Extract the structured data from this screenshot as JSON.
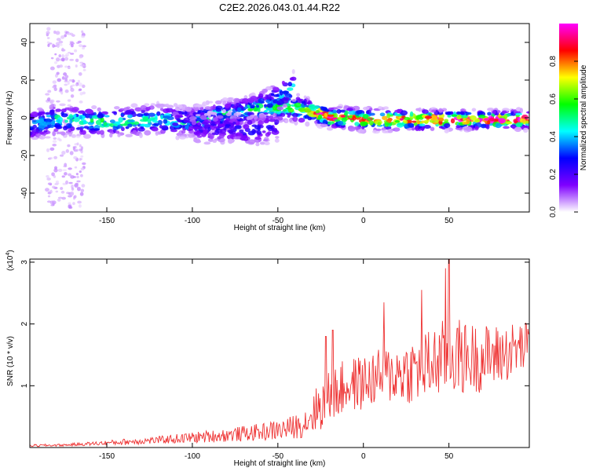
{
  "title": "C2E2.2026.043.01.44.R22",
  "chart_data": [
    {
      "type": "heatmap",
      "xlabel": "Height of straight line (km)",
      "ylabel": "Frequency (Hz)",
      "xlim": [
        -195,
        97
      ],
      "ylim": [
        -50,
        50
      ],
      "x_ticks": [
        -150,
        -100,
        -50,
        0,
        50
      ],
      "y_ticks": [
        40,
        20,
        0,
        -20,
        -40
      ],
      "colorbar": {
        "label": "Normalized spectral amplitude",
        "range": [
          0,
          1
        ],
        "ticks": [
          "0.0",
          "0.2",
          "0.4",
          "0.6",
          "0.8"
        ],
        "tick_values": [
          0,
          0.2,
          0.4,
          0.6,
          0.8
        ],
        "colormap": [
          "#ffffff",
          "#7f00ff",
          "#0000ff",
          "#00ffff",
          "#00ff00",
          "#ffff00",
          "#ff0000",
          "#ff00ff"
        ]
      },
      "ridges": [
        {
          "x": [
            -195,
            -180,
            -160,
            -140,
            -120,
            -100,
            -80,
            -60,
            -45,
            -35,
            -30,
            -25,
            -20,
            -10,
            0,
            20,
            40,
            60,
            80,
            97
          ],
          "y": [
            -4,
            -1,
            -2,
            -2,
            -1,
            -2,
            2,
            5,
            6,
            4,
            3,
            2,
            0,
            0,
            -1,
            -1,
            -1,
            -1,
            -1,
            -1
          ],
          "amp": [
            0.3,
            0.45,
            0.5,
            0.5,
            0.45,
            0.45,
            0.5,
            0.5,
            0.55,
            0.6,
            0.75,
            0.85,
            0.9,
            0.85,
            0.8,
            0.85,
            0.9,
            0.95,
            0.95,
            0.95
          ]
        },
        {
          "x": [
            -110,
            -90,
            -70,
            -55,
            -45,
            -40
          ],
          "y": [
            -3,
            -1,
            3,
            8,
            14,
            17
          ],
          "amp": [
            0.25,
            0.3,
            0.35,
            0.35,
            0.4,
            0.45
          ]
        },
        {
          "x": [
            -100,
            -80,
            -65,
            -50
          ],
          "y": [
            -6,
            -5,
            -7,
            -4
          ],
          "amp": [
            0.2,
            0.22,
            0.25,
            0.2
          ]
        }
      ]
    },
    {
      "type": "line",
      "xlabel": "Height of straight line (km)",
      "ylabel": "SNR (10 * v/v)",
      "y_multiplier": "(x10",
      "y_multiplier_exp": "4",
      "xlim": [
        -195,
        97
      ],
      "ylim": [
        0,
        3.05
      ],
      "x_ticks": [
        -150,
        -100,
        -50,
        0,
        50
      ],
      "y_ticks": [
        1,
        2,
        3
      ],
      "series": [
        {
          "color": "#ee3333",
          "x": [
            -195,
            -175,
            -160,
            -140,
            -120,
            -100,
            -80,
            -60,
            -45,
            -35,
            -30,
            -20,
            -10,
            0,
            10,
            20,
            30,
            40,
            50,
            60,
            70,
            80,
            90,
            97
          ],
          "y": [
            0.03,
            0.04,
            0.06,
            0.09,
            0.12,
            0.16,
            0.2,
            0.25,
            0.3,
            0.38,
            0.55,
            0.8,
            1.0,
            1.05,
            1.15,
            1.2,
            1.25,
            1.35,
            1.5,
            1.45,
            1.45,
            1.5,
            1.6,
            1.65
          ],
          "noise": [
            0.02,
            0.02,
            0.03,
            0.05,
            0.06,
            0.09,
            0.11,
            0.14,
            0.18,
            0.22,
            0.35,
            0.45,
            0.45,
            0.45,
            0.45,
            0.5,
            0.55,
            0.6,
            0.65,
            0.6,
            0.55,
            0.5,
            0.45,
            0.4
          ],
          "peaks": [
            {
              "x": 48,
              "y": 2.9
            },
            {
              "x": 50,
              "y": 3.05
            },
            {
              "x": 34,
              "y": 2.55
            },
            {
              "x": -22,
              "y": 1.8
            },
            {
              "x": -18,
              "y": 1.9
            },
            {
              "x": 12,
              "y": 2.35
            }
          ]
        }
      ]
    }
  ]
}
